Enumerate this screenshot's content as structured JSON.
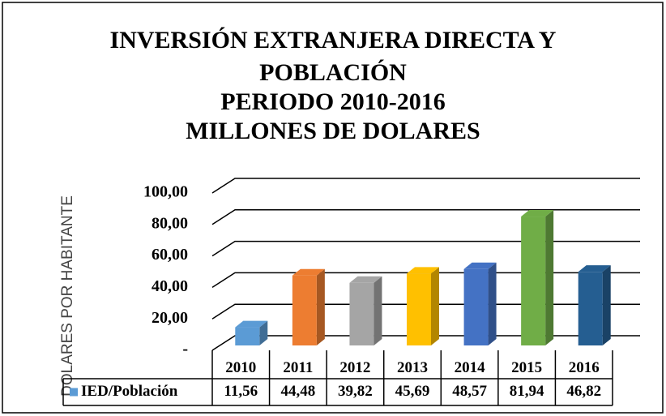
{
  "chart_data": {
    "type": "bar3d",
    "title": [
      "INVERSIÓN EXTRANJERA DIRECTA Y",
      "POBLACIÓN",
      "PERIODO 2010-2016",
      "MILLONES DE DOLARES"
    ],
    "y_label": "DOLARES POR HABITANTE",
    "categories": [
      "2010",
      "2011",
      "2012",
      "2013",
      "2014",
      "2015",
      "2016"
    ],
    "series": [
      {
        "name": "IED/Población",
        "color": "#5b9bd5",
        "values": [
          11.56,
          44.48,
          39.82,
          45.69,
          48.57,
          81.94,
          46.82
        ],
        "value_labels": [
          "11,56",
          "44,48",
          "39,82",
          "45,69",
          "48,57",
          "81,94",
          "46,82"
        ]
      }
    ],
    "bar_colors": [
      "#5b9bd5",
      "#ed7d31",
      "#a5a5a5",
      "#ffc000",
      "#4472c4",
      "#70ad47",
      "#255e91"
    ],
    "ylim": [
      0,
      100
    ],
    "yticks": [
      {
        "value": 0,
        "label": "-"
      },
      {
        "value": 20,
        "label": "20,00"
      },
      {
        "value": 40,
        "label": "40,00"
      },
      {
        "value": 60,
        "label": "60,00"
      },
      {
        "value": 80,
        "label": "80,00"
      },
      {
        "value": 100,
        "label": "100,00"
      }
    ],
    "grid": true
  }
}
